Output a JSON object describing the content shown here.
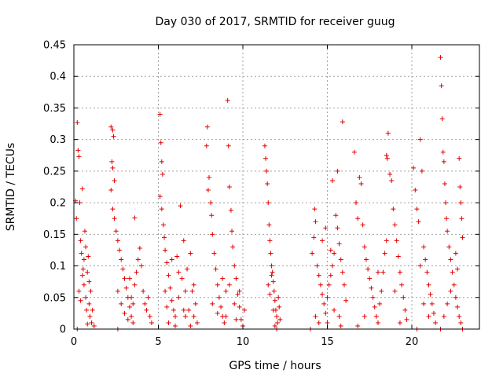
{
  "chart_data": {
    "type": "scatter",
    "title": "Day 030 of 2017, SRMTID for receiver guug",
    "xlabel": "GPS time / hours",
    "ylabel": "SRMTID / TECUs",
    "xlim": [
      0,
      24
    ],
    "ylim": [
      0,
      0.45
    ],
    "xticks": [
      0,
      5,
      10,
      15,
      20
    ],
    "xtick_labels": [
      "0",
      "5",
      "10",
      "15",
      "20"
    ],
    "yticks": [
      0,
      0.05,
      0.1,
      0.15,
      0.2,
      0.25,
      0.3,
      0.35,
      0.4,
      0.45
    ],
    "ytick_labels": [
      "0",
      "0.05",
      "0.1",
      "0.15",
      "0.2",
      "0.25",
      "0.3",
      "0.35",
      "0.4",
      "0.45"
    ],
    "grid": true,
    "marker": "+",
    "color": "#e00000",
    "series": [
      {
        "name": "SRMTID",
        "points": [
          [
            0.1,
            0.203
          ],
          [
            0.15,
            0.175
          ],
          [
            0.2,
            0.327
          ],
          [
            0.25,
            0.283
          ],
          [
            0.3,
            0.273
          ],
          [
            0.35,
            0.2
          ],
          [
            0.4,
            0.14
          ],
          [
            0.45,
            0.12
          ],
          [
            0.5,
            0.222
          ],
          [
            0.55,
            0.095
          ],
          [
            0.6,
            0.07
          ],
          [
            0.65,
            0.155
          ],
          [
            0.7,
            0.05
          ],
          [
            0.75,
            0.03
          ],
          [
            0.8,
            0.09
          ],
          [
            0.85,
            0.115
          ],
          [
            0.9,
            0.04
          ],
          [
            0.95,
            0.02
          ],
          [
            1.0,
            0.06
          ],
          [
            1.05,
            0.01
          ],
          [
            0.3,
            0.06
          ],
          [
            0.4,
            0.045
          ],
          [
            0.5,
            0.085
          ],
          [
            0.6,
            0.11
          ],
          [
            0.7,
            0.13
          ],
          [
            0.8,
            0.008
          ],
          [
            0.9,
            0.075
          ],
          [
            1.1,
            0.03
          ],
          [
            1.2,
            0.005
          ],
          [
            0.2,
            0.0
          ],
          [
            2.2,
            0.32
          ],
          [
            2.3,
            0.315
          ],
          [
            2.35,
            0.305
          ],
          [
            2.25,
            0.265
          ],
          [
            2.3,
            0.255
          ],
          [
            2.4,
            0.235
          ],
          [
            2.2,
            0.22
          ],
          [
            2.3,
            0.19
          ],
          [
            2.4,
            0.175
          ],
          [
            2.5,
            0.155
          ],
          [
            2.6,
            0.14
          ],
          [
            2.7,
            0.125
          ],
          [
            2.8,
            0.11
          ],
          [
            2.9,
            0.095
          ],
          [
            3.0,
            0.08
          ],
          [
            3.1,
            0.065
          ],
          [
            3.2,
            0.05
          ],
          [
            3.3,
            0.035
          ],
          [
            3.4,
            0.02
          ],
          [
            3.5,
            0.01
          ],
          [
            2.6,
            0.06
          ],
          [
            2.8,
            0.04
          ],
          [
            3.0,
            0.025
          ],
          [
            3.2,
            0.015
          ],
          [
            3.4,
            0.05
          ],
          [
            3.6,
            0.07
          ],
          [
            3.7,
            0.09
          ],
          [
            3.8,
            0.11
          ],
          [
            3.9,
            0.128
          ],
          [
            4.0,
            0.1
          ],
          [
            4.1,
            0.06
          ],
          [
            4.2,
            0.04
          ],
          [
            4.3,
            0.03
          ],
          [
            4.4,
            0.05
          ],
          [
            4.5,
            0.02
          ],
          [
            3.6,
            0.176
          ],
          [
            2.6,
            0.0
          ],
          [
            3.3,
            0.08
          ],
          [
            3.5,
            0.04
          ],
          [
            4.6,
            0.01
          ],
          [
            5.1,
            0.34
          ],
          [
            5.15,
            0.295
          ],
          [
            5.2,
            0.265
          ],
          [
            5.25,
            0.245
          ],
          [
            5.1,
            0.21
          ],
          [
            5.2,
            0.19
          ],
          [
            5.3,
            0.165
          ],
          [
            5.35,
            0.145
          ],
          [
            5.4,
            0.125
          ],
          [
            5.5,
            0.105
          ],
          [
            5.6,
            0.085
          ],
          [
            5.7,
            0.065
          ],
          [
            5.8,
            0.045
          ],
          [
            5.9,
            0.03
          ],
          [
            6.0,
            0.02
          ],
          [
            6.2,
            0.05
          ],
          [
            6.4,
            0.08
          ],
          [
            6.6,
            0.06
          ],
          [
            6.8,
            0.03
          ],
          [
            7.0,
            0.06
          ],
          [
            6.1,
            0.115
          ],
          [
            6.3,
            0.195
          ],
          [
            6.5,
            0.14
          ],
          [
            6.7,
            0.095
          ],
          [
            6.9,
            0.12
          ],
          [
            7.1,
            0.07
          ],
          [
            7.2,
            0.04
          ],
          [
            7.3,
            0.01
          ],
          [
            5.6,
            0.01
          ],
          [
            6.0,
            0.005
          ],
          [
            6.5,
            0.03
          ],
          [
            6.9,
            0.005
          ],
          [
            7.1,
            0.02
          ],
          [
            5.8,
            0.11
          ],
          [
            6.2,
            0.09
          ],
          [
            6.6,
            0.02
          ],
          [
            5.4,
            0.06
          ],
          [
            5.5,
            0.035
          ],
          [
            7.9,
            0.32
          ],
          [
            7.85,
            0.29
          ],
          [
            8.0,
            0.24
          ],
          [
            7.95,
            0.22
          ],
          [
            8.1,
            0.2
          ],
          [
            8.15,
            0.18
          ],
          [
            8.2,
            0.15
          ],
          [
            8.3,
            0.12
          ],
          [
            8.4,
            0.095
          ],
          [
            8.5,
            0.07
          ],
          [
            8.6,
            0.05
          ],
          [
            8.7,
            0.035
          ],
          [
            8.8,
            0.02
          ],
          [
            8.9,
            0.01
          ],
          [
            9.0,
            0.06
          ],
          [
            9.1,
            0.362
          ],
          [
            9.15,
            0.29
          ],
          [
            9.2,
            0.225
          ],
          [
            9.3,
            0.188
          ],
          [
            9.35,
            0.155
          ],
          [
            9.4,
            0.13
          ],
          [
            9.5,
            0.1
          ],
          [
            9.6,
            0.08
          ],
          [
            9.7,
            0.055
          ],
          [
            9.8,
            0.035
          ],
          [
            9.9,
            0.015
          ],
          [
            10.0,
            0.005
          ],
          [
            8.2,
            0.04
          ],
          [
            8.5,
            0.025
          ],
          [
            9.0,
            0.02
          ],
          [
            9.5,
            0.04
          ],
          [
            9.8,
            0.06
          ],
          [
            10.1,
            0.03
          ],
          [
            8.8,
            0.08
          ],
          [
            9.2,
            0.07
          ],
          [
            9.6,
            0.015
          ],
          [
            11.3,
            0.29
          ],
          [
            11.35,
            0.27
          ],
          [
            11.4,
            0.25
          ],
          [
            11.45,
            0.23
          ],
          [
            11.5,
            0.2
          ],
          [
            11.55,
            0.165
          ],
          [
            11.6,
            0.14
          ],
          [
            11.65,
            0.12
          ],
          [
            11.7,
            0.1
          ],
          [
            11.75,
            0.09
          ],
          [
            11.8,
            0.075
          ],
          [
            11.85,
            0.06
          ],
          [
            11.9,
            0.045
          ],
          [
            11.95,
            0.03
          ],
          [
            12.0,
            0.02
          ],
          [
            12.05,
            0.01
          ],
          [
            12.1,
            0.05
          ],
          [
            12.15,
            0.035
          ],
          [
            12.2,
            0.015
          ],
          [
            11.5,
            0.07
          ],
          [
            11.6,
            0.055
          ],
          [
            11.7,
            0.085
          ],
          [
            11.8,
            0.03
          ],
          [
            11.9,
            0.005
          ],
          [
            12.0,
            0.0
          ],
          [
            14.0,
            0.0
          ],
          [
            14.1,
            0.12
          ],
          [
            14.2,
            0.145
          ],
          [
            14.25,
            0.19
          ],
          [
            14.3,
            0.17
          ],
          [
            14.4,
            0.1
          ],
          [
            14.5,
            0.085
          ],
          [
            14.6,
            0.07
          ],
          [
            14.7,
            0.055
          ],
          [
            14.8,
            0.04
          ],
          [
            14.9,
            0.025
          ],
          [
            15.0,
            0.05
          ],
          [
            15.1,
            0.07
          ],
          [
            15.2,
            0.085
          ],
          [
            15.3,
            0.1
          ],
          [
            15.4,
            0.12
          ],
          [
            15.5,
            0.18
          ],
          [
            15.6,
            0.16
          ],
          [
            15.7,
            0.135
          ],
          [
            15.8,
            0.11
          ],
          [
            15.9,
            0.09
          ],
          [
            16.0,
            0.07
          ],
          [
            15.9,
            0.328
          ],
          [
            15.3,
            0.235
          ],
          [
            15.6,
            0.25
          ],
          [
            14.7,
            0.14
          ],
          [
            14.9,
            0.16
          ],
          [
            15.2,
            0.125
          ],
          [
            15.4,
            0.03
          ],
          [
            15.7,
            0.02
          ],
          [
            16.1,
            0.045
          ],
          [
            14.3,
            0.02
          ],
          [
            14.5,
            0.01
          ],
          [
            15.0,
            0.01
          ],
          [
            15.8,
            0.005
          ],
          [
            16.6,
            0.28
          ],
          [
            16.9,
            0.24
          ],
          [
            17.0,
            0.23
          ],
          [
            16.7,
            0.2
          ],
          [
            16.8,
            0.175
          ],
          [
            17.1,
            0.165
          ],
          [
            17.2,
            0.13
          ],
          [
            17.3,
            0.11
          ],
          [
            17.4,
            0.095
          ],
          [
            17.5,
            0.08
          ],
          [
            17.6,
            0.065
          ],
          [
            17.7,
            0.05
          ],
          [
            17.8,
            0.035
          ],
          [
            17.9,
            0.02
          ],
          [
            18.0,
            0.01
          ],
          [
            18.1,
            0.04
          ],
          [
            18.2,
            0.06
          ],
          [
            18.3,
            0.09
          ],
          [
            18.4,
            0.12
          ],
          [
            18.5,
            0.14
          ],
          [
            18.5,
            0.275
          ],
          [
            18.55,
            0.27
          ],
          [
            18.6,
            0.31
          ],
          [
            18.7,
            0.245
          ],
          [
            18.8,
            0.235
          ],
          [
            18.9,
            0.19
          ],
          [
            19.0,
            0.165
          ],
          [
            19.1,
            0.14
          ],
          [
            19.2,
            0.115
          ],
          [
            19.3,
            0.09
          ],
          [
            19.4,
            0.07
          ],
          [
            19.5,
            0.05
          ],
          [
            19.6,
            0.03
          ],
          [
            19.7,
            0.015
          ],
          [
            16.8,
            0.005
          ],
          [
            17.2,
            0.02
          ],
          [
            18.0,
            0.09
          ],
          [
            19.0,
            0.06
          ],
          [
            19.3,
            0.01
          ],
          [
            20.1,
            0.255
          ],
          [
            20.2,
            0.22
          ],
          [
            20.3,
            0.19
          ],
          [
            20.4,
            0.17
          ],
          [
            20.5,
            0.3
          ],
          [
            20.6,
            0.25
          ],
          [
            20.7,
            0.13
          ],
          [
            20.8,
            0.11
          ],
          [
            20.9,
            0.09
          ],
          [
            21.0,
            0.07
          ],
          [
            21.1,
            0.055
          ],
          [
            21.2,
            0.04
          ],
          [
            21.3,
            0.025
          ],
          [
            21.4,
            0.01
          ],
          [
            20.5,
            0.1
          ],
          [
            20.7,
            0.04
          ],
          [
            21.0,
            0.02
          ],
          [
            20.3,
            0.0
          ],
          [
            21.7,
            0.43
          ],
          [
            21.75,
            0.385
          ],
          [
            21.8,
            0.333
          ],
          [
            21.85,
            0.28
          ],
          [
            21.9,
            0.265
          ],
          [
            21.95,
            0.23
          ],
          [
            22.0,
            0.2
          ],
          [
            22.05,
            0.175
          ],
          [
            22.1,
            0.155
          ],
          [
            22.2,
            0.13
          ],
          [
            22.3,
            0.11
          ],
          [
            22.4,
            0.09
          ],
          [
            22.5,
            0.07
          ],
          [
            22.6,
            0.05
          ],
          [
            22.7,
            0.035
          ],
          [
            22.8,
            0.02
          ],
          [
            22.9,
            0.01
          ],
          [
            23.0,
            0.0
          ],
          [
            22.8,
            0.27
          ],
          [
            22.85,
            0.225
          ],
          [
            22.9,
            0.2
          ],
          [
            22.95,
            0.175
          ],
          [
            23.0,
            0.145
          ],
          [
            22.6,
            0.12
          ],
          [
            22.7,
            0.095
          ],
          [
            22.3,
            0.06
          ],
          [
            22.1,
            0.04
          ],
          [
            21.9,
            0.02
          ],
          [
            21.7,
            0.0
          ]
        ]
      }
    ]
  }
}
